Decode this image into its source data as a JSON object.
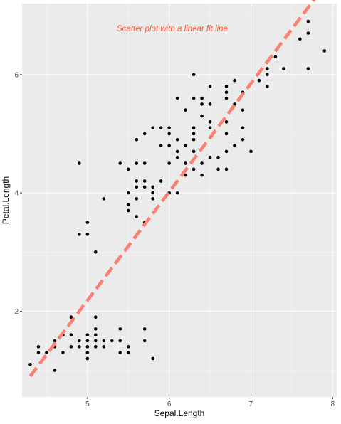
{
  "chart_data": {
    "type": "scatter",
    "title": "",
    "annotation": "Scatter plot with a linear fit line",
    "xlabel": "Sepal.Length",
    "ylabel": "Petal.Length",
    "xlim": [
      4.2,
      8.05
    ],
    "ylim": [
      0.55,
      7.2
    ],
    "x_ticks": [
      5,
      6,
      7,
      8
    ],
    "x_tick_labels": [
      "5",
      "6",
      "7",
      "8"
    ],
    "y_ticks": [
      2,
      4,
      6
    ],
    "y_tick_labels": [
      "2",
      "4",
      "6"
    ],
    "x_minor_ticks": [
      4.5,
      5.5,
      6.5,
      7.5
    ],
    "y_minor_ticks": [
      1,
      3,
      5,
      7
    ],
    "grid": true,
    "legend": "none",
    "colors": {
      "panel_background": "#ebebeb",
      "grid_major": "#ffffff",
      "grid_minor": "#f5f5f5",
      "points": "#000000",
      "fit_line": "#fa8072",
      "annotation": "#ff5a36"
    },
    "fit_line": {
      "x": [
        4.3,
        7.9
      ],
      "y": [
        0.9,
        7.5
      ],
      "style": "dashed"
    },
    "points": [
      {
        "x": 4.3,
        "y": 1.1
      },
      {
        "x": 4.4,
        "y": 1.3
      },
      {
        "x": 4.4,
        "y": 1.4
      },
      {
        "x": 4.5,
        "y": 1.3
      },
      {
        "x": 4.6,
        "y": 1.0
      },
      {
        "x": 4.6,
        "y": 1.4
      },
      {
        "x": 4.6,
        "y": 1.5
      },
      {
        "x": 4.7,
        "y": 1.3
      },
      {
        "x": 4.7,
        "y": 1.6
      },
      {
        "x": 4.8,
        "y": 1.4
      },
      {
        "x": 4.8,
        "y": 1.6
      },
      {
        "x": 4.8,
        "y": 1.9
      },
      {
        "x": 4.9,
        "y": 1.4
      },
      {
        "x": 4.9,
        "y": 1.5
      },
      {
        "x": 4.9,
        "y": 3.3
      },
      {
        "x": 4.9,
        "y": 4.5
      },
      {
        "x": 5.0,
        "y": 1.2
      },
      {
        "x": 5.0,
        "y": 1.3
      },
      {
        "x": 5.0,
        "y": 1.4
      },
      {
        "x": 5.0,
        "y": 1.5
      },
      {
        "x": 5.0,
        "y": 1.6
      },
      {
        "x": 5.0,
        "y": 3.3
      },
      {
        "x": 5.0,
        "y": 3.5
      },
      {
        "x": 5.1,
        "y": 1.4
      },
      {
        "x": 5.1,
        "y": 1.5
      },
      {
        "x": 5.1,
        "y": 1.6
      },
      {
        "x": 5.1,
        "y": 1.7
      },
      {
        "x": 5.1,
        "y": 1.9
      },
      {
        "x": 5.1,
        "y": 3.0
      },
      {
        "x": 5.2,
        "y": 1.4
      },
      {
        "x": 5.2,
        "y": 1.5
      },
      {
        "x": 5.2,
        "y": 3.9
      },
      {
        "x": 5.3,
        "y": 1.5
      },
      {
        "x": 5.4,
        "y": 1.3
      },
      {
        "x": 5.4,
        "y": 1.5
      },
      {
        "x": 5.4,
        "y": 1.7
      },
      {
        "x": 5.4,
        "y": 4.5
      },
      {
        "x": 5.5,
        "y": 1.3
      },
      {
        "x": 5.5,
        "y": 1.4
      },
      {
        "x": 5.5,
        "y": 3.7
      },
      {
        "x": 5.5,
        "y": 3.8
      },
      {
        "x": 5.5,
        "y": 4.0
      },
      {
        "x": 5.5,
        "y": 4.4
      },
      {
        "x": 5.6,
        "y": 3.6
      },
      {
        "x": 5.6,
        "y": 3.9
      },
      {
        "x": 5.6,
        "y": 4.1
      },
      {
        "x": 5.6,
        "y": 4.2
      },
      {
        "x": 5.6,
        "y": 4.5
      },
      {
        "x": 5.6,
        "y": 4.9
      },
      {
        "x": 5.7,
        "y": 1.5
      },
      {
        "x": 5.7,
        "y": 1.7
      },
      {
        "x": 5.7,
        "y": 3.5
      },
      {
        "x": 5.7,
        "y": 4.1
      },
      {
        "x": 5.7,
        "y": 4.2
      },
      {
        "x": 5.7,
        "y": 4.5
      },
      {
        "x": 5.7,
        "y": 5.0
      },
      {
        "x": 5.8,
        "y": 1.2
      },
      {
        "x": 5.8,
        "y": 3.9
      },
      {
        "x": 5.8,
        "y": 4.0
      },
      {
        "x": 5.8,
        "y": 4.1
      },
      {
        "x": 5.8,
        "y": 5.1
      },
      {
        "x": 5.9,
        "y": 4.2
      },
      {
        "x": 5.9,
        "y": 4.8
      },
      {
        "x": 5.9,
        "y": 5.1
      },
      {
        "x": 6.0,
        "y": 4.0
      },
      {
        "x": 6.0,
        "y": 4.5
      },
      {
        "x": 6.0,
        "y": 4.8
      },
      {
        "x": 6.0,
        "y": 5.0
      },
      {
        "x": 6.0,
        "y": 5.1
      },
      {
        "x": 6.1,
        "y": 4.0
      },
      {
        "x": 6.1,
        "y": 4.6
      },
      {
        "x": 6.1,
        "y": 4.7
      },
      {
        "x": 6.1,
        "y": 4.9
      },
      {
        "x": 6.1,
        "y": 5.6
      },
      {
        "x": 6.2,
        "y": 4.3
      },
      {
        "x": 6.2,
        "y": 4.5
      },
      {
        "x": 6.2,
        "y": 4.8
      },
      {
        "x": 6.2,
        "y": 5.4
      },
      {
        "x": 6.3,
        "y": 4.4
      },
      {
        "x": 6.3,
        "y": 4.7
      },
      {
        "x": 6.3,
        "y": 4.9
      },
      {
        "x": 6.3,
        "y": 5.0
      },
      {
        "x": 6.3,
        "y": 5.1
      },
      {
        "x": 6.3,
        "y": 5.6
      },
      {
        "x": 6.3,
        "y": 6.0
      },
      {
        "x": 6.4,
        "y": 4.3
      },
      {
        "x": 6.4,
        "y": 4.5
      },
      {
        "x": 6.4,
        "y": 5.3
      },
      {
        "x": 6.4,
        "y": 5.5
      },
      {
        "x": 6.4,
        "y": 5.6
      },
      {
        "x": 6.5,
        "y": 4.6
      },
      {
        "x": 6.5,
        "y": 5.1
      },
      {
        "x": 6.5,
        "y": 5.2
      },
      {
        "x": 6.5,
        "y": 5.5
      },
      {
        "x": 6.5,
        "y": 5.8
      },
      {
        "x": 6.6,
        "y": 4.4
      },
      {
        "x": 6.6,
        "y": 4.6
      },
      {
        "x": 6.7,
        "y": 4.4
      },
      {
        "x": 6.7,
        "y": 4.7
      },
      {
        "x": 6.7,
        "y": 5.0
      },
      {
        "x": 6.7,
        "y": 5.2
      },
      {
        "x": 6.7,
        "y": 5.6
      },
      {
        "x": 6.7,
        "y": 5.7
      },
      {
        "x": 6.7,
        "y": 5.8
      },
      {
        "x": 6.8,
        "y": 4.8
      },
      {
        "x": 6.8,
        "y": 5.5
      },
      {
        "x": 6.8,
        "y": 5.9
      },
      {
        "x": 6.9,
        "y": 4.9
      },
      {
        "x": 6.9,
        "y": 5.1
      },
      {
        "x": 6.9,
        "y": 5.4
      },
      {
        "x": 6.9,
        "y": 5.7
      },
      {
        "x": 7.0,
        "y": 4.7
      },
      {
        "x": 7.1,
        "y": 5.9
      },
      {
        "x": 7.2,
        "y": 5.8
      },
      {
        "x": 7.2,
        "y": 6.0
      },
      {
        "x": 7.2,
        "y": 6.1
      },
      {
        "x": 7.3,
        "y": 6.3
      },
      {
        "x": 7.4,
        "y": 6.1
      },
      {
        "x": 7.6,
        "y": 6.6
      },
      {
        "x": 7.7,
        "y": 6.1
      },
      {
        "x": 7.7,
        "y": 6.7
      },
      {
        "x": 7.7,
        "y": 6.9
      },
      {
        "x": 7.9,
        "y": 6.4
      }
    ]
  }
}
